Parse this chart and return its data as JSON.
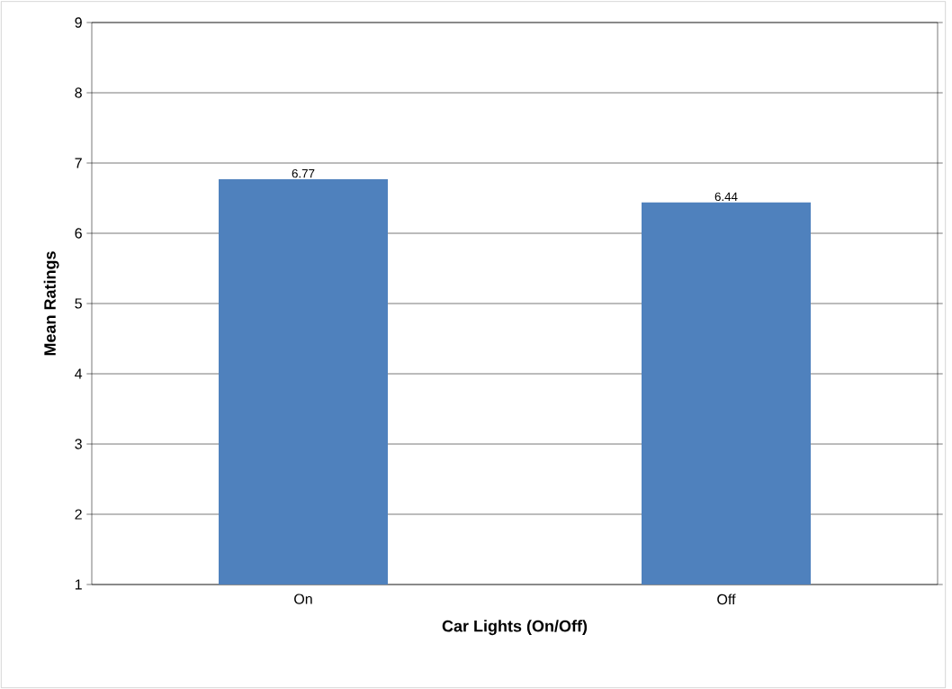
{
  "chart_data": {
    "type": "bar",
    "xlabel": "Car Lights (On/Off)",
    "ylabel": "Mean Ratings",
    "categories": [
      "On",
      "Off"
    ],
    "values": [
      6.77,
      6.44
    ],
    "color": "#4f81bd",
    "ylim": [
      1,
      9
    ],
    "yticks": [
      1,
      2,
      3,
      4,
      5,
      6,
      7,
      8,
      9
    ],
    "grid": "y",
    "data_labels": true
  }
}
